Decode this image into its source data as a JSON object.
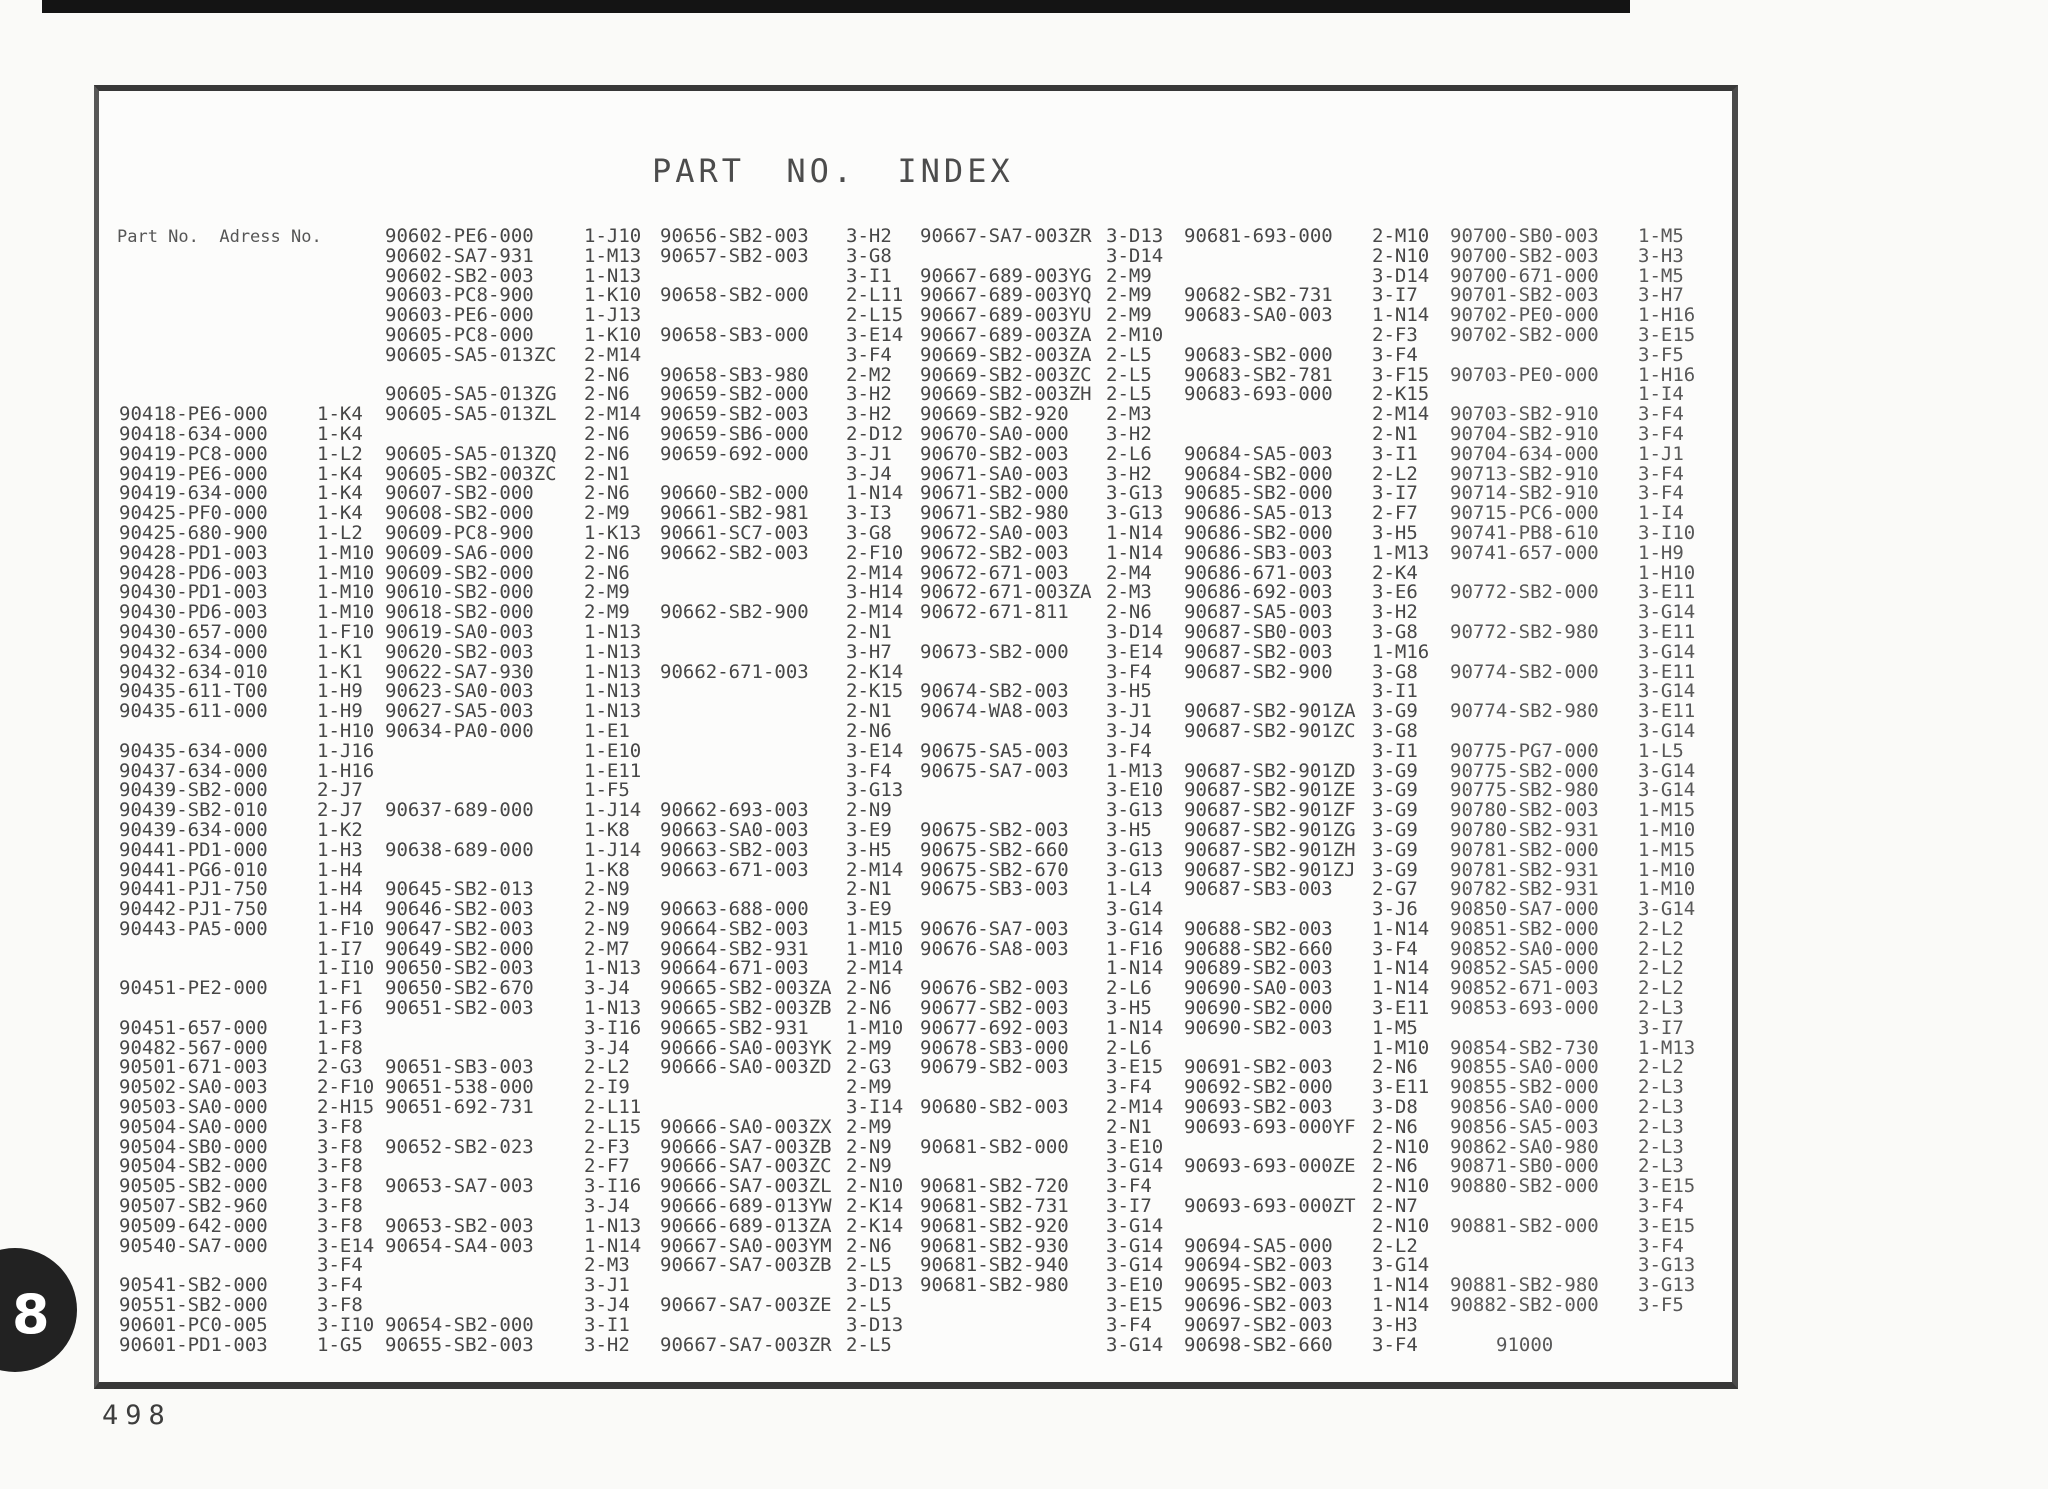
{
  "document": {
    "title": "PART NO. INDEX",
    "column_header": "Part No.  Adress No.",
    "page_number": "498",
    "tab_label": "8"
  },
  "colors": {
    "paper": "#fafaf8",
    "ink": "#474747",
    "frame": "#383838",
    "tab": "#222222",
    "scanbar": "#141414"
  },
  "index_table": {
    "column_roles": [
      "part_no",
      "address_no",
      "part_no",
      "address_no",
      "part_no",
      "address_no",
      "part_no",
      "address_no",
      "part_no",
      "address_no",
      "part_no",
      "address_no"
    ],
    "indent_cells": [
      [
        56,
        10
      ]
    ],
    "rows": [
      [
        "",
        "",
        "90602-PE6-000",
        "1-J10",
        "90656-SB2-003",
        "3-H2",
        "90667-SA7-003ZR",
        "3-D13",
        "90681-693-000",
        "2-M10",
        "90700-SB0-003",
        "1-M5"
      ],
      [
        "",
        "",
        "90602-SA7-931",
        "1-M13",
        "90657-SB2-003",
        "3-G8",
        "",
        "3-D14",
        "",
        "2-N10",
        "90700-SB2-003",
        "3-H3"
      ],
      [
        "",
        "",
        "90602-SB2-003",
        "1-N13",
        "",
        "3-I1",
        "90667-689-003YG",
        "2-M9",
        "",
        "3-D14",
        "90700-671-000",
        "1-M5"
      ],
      [
        "",
        "",
        "90603-PC8-900",
        "1-K10",
        "90658-SB2-000",
        "2-L11",
        "90667-689-003YQ",
        "2-M9",
        "90682-SB2-731",
        "3-I7",
        "90701-SB2-003",
        "3-H7"
      ],
      [
        "",
        "",
        "90603-PE6-000",
        "1-J13",
        "",
        "2-L15",
        "90667-689-003YU",
        "2-M9",
        "90683-SA0-003",
        "1-N14",
        "90702-PE0-000",
        "1-H16"
      ],
      [
        "",
        "",
        "90605-PC8-000",
        "1-K10",
        "90658-SB3-000",
        "3-E14",
        "90667-689-003ZA",
        "2-M10",
        "",
        "2-F3",
        "90702-SB2-000",
        "3-E15"
      ],
      [
        "",
        "",
        "90605-SA5-013ZC",
        "2-M14",
        "",
        "3-F4",
        "90669-SB2-003ZA",
        "2-L5",
        "90683-SB2-000",
        "3-F4",
        "",
        "3-F5"
      ],
      [
        "",
        "",
        "",
        "2-N6",
        "90658-SB3-980",
        "2-M2",
        "90669-SB2-003ZC",
        "2-L5",
        "90683-SB2-781",
        "3-F15",
        "90703-PE0-000",
        "1-H16"
      ],
      [
        "",
        "",
        "90605-SA5-013ZG",
        "2-N6",
        "90659-SB2-000",
        "3-H2",
        "90669-SB2-003ZH",
        "2-L5",
        "90683-693-000",
        "2-K15",
        "",
        "1-I4"
      ],
      [
        "90418-PE6-000",
        "1-K4",
        "90605-SA5-013ZL",
        "2-M14",
        "90659-SB2-003",
        "3-H2",
        "90669-SB2-920",
        "2-M3",
        "",
        "2-M14",
        "90703-SB2-910",
        "3-F4"
      ],
      [
        "90418-634-000",
        "1-K4",
        "",
        "2-N6",
        "90659-SB6-000",
        "2-D12",
        "90670-SA0-000",
        "3-H2",
        "",
        "2-N1",
        "90704-SB2-910",
        "3-F4"
      ],
      [
        "90419-PC8-000",
        "1-L2",
        "90605-SA5-013ZQ",
        "2-N6",
        "90659-692-000",
        "3-J1",
        "90670-SB2-003",
        "2-L6",
        "90684-SA5-003",
        "3-I1",
        "90704-634-000",
        "1-J1"
      ],
      [
        "90419-PE6-000",
        "1-K4",
        "90605-SB2-003ZC",
        "2-N1",
        "",
        "3-J4",
        "90671-SA0-003",
        "3-H2",
        "90684-SB2-000",
        "2-L2",
        "90713-SB2-910",
        "3-F4"
      ],
      [
        "90419-634-000",
        "1-K4",
        "90607-SB2-000",
        "2-N6",
        "90660-SB2-000",
        "1-N14",
        "90671-SB2-000",
        "3-G13",
        "90685-SB2-000",
        "3-I7",
        "90714-SB2-910",
        "3-F4"
      ],
      [
        "90425-PF0-000",
        "1-K4",
        "90608-SB2-000",
        "2-M9",
        "90661-SB2-981",
        "3-I3",
        "90671-SB2-980",
        "3-G13",
        "90686-SA5-013",
        "2-F7",
        "90715-PC6-000",
        "1-I4"
      ],
      [
        "90425-680-900",
        "1-L2",
        "90609-PC8-900",
        "1-K13",
        "90661-SC7-003",
        "3-G8",
        "90672-SA0-003",
        "1-N14",
        "90686-SB2-000",
        "3-H5",
        "90741-PB8-610",
        "3-I10"
      ],
      [
        "90428-PD1-003",
        "1-M10",
        "90609-SA6-000",
        "2-N6",
        "90662-SB2-003",
        "2-F10",
        "90672-SB2-003",
        "1-N14",
        "90686-SB3-003",
        "1-M13",
        "90741-657-000",
        "1-H9"
      ],
      [
        "90428-PD6-003",
        "1-M10",
        "90609-SB2-000",
        "2-N6",
        "",
        "2-M14",
        "90672-671-003",
        "2-M4",
        "90686-671-003",
        "2-K4",
        "",
        "1-H10"
      ],
      [
        "90430-PD1-003",
        "1-M10",
        "90610-SB2-000",
        "2-M9",
        "",
        "3-H14",
        "90672-671-003ZA",
        "2-M3",
        "90686-692-003",
        "3-E6",
        "90772-SB2-000",
        "3-E11"
      ],
      [
        "90430-PD6-003",
        "1-M10",
        "90618-SB2-000",
        "2-M9",
        "90662-SB2-900",
        "2-M14",
        "90672-671-811",
        "2-N6",
        "90687-SA5-003",
        "3-H2",
        "",
        "3-G14"
      ],
      [
        "90430-657-000",
        "1-F10",
        "90619-SA0-003",
        "1-N13",
        "",
        "2-N1",
        "",
        "3-D14",
        "90687-SB0-003",
        "3-G8",
        "90772-SB2-980",
        "3-E11"
      ],
      [
        "90432-634-000",
        "1-K1",
        "90620-SB2-003",
        "1-N13",
        "",
        "3-H7",
        "90673-SB2-000",
        "3-E14",
        "90687-SB2-003",
        "1-M16",
        "",
        "3-G14"
      ],
      [
        "90432-634-010",
        "1-K1",
        "90622-SA7-930",
        "1-N13",
        "90662-671-003",
        "2-K14",
        "",
        "3-F4",
        "90687-SB2-900",
        "3-G8",
        "90774-SB2-000",
        "3-E11"
      ],
      [
        "90435-611-T00",
        "1-H9",
        "90623-SA0-003",
        "1-N13",
        "",
        "2-K15",
        "90674-SB2-003",
        "3-H5",
        "",
        "3-I1",
        "",
        "3-G14"
      ],
      [
        "90435-611-000",
        "1-H9",
        "90627-SA5-003",
        "1-N13",
        "",
        "2-N1",
        "90674-WA8-003",
        "3-J1",
        "90687-SB2-901ZA",
        "3-G9",
        "90774-SB2-980",
        "3-E11"
      ],
      [
        "",
        "1-H10",
        "90634-PA0-000",
        "1-E1",
        "",
        "2-N6",
        "",
        "3-J4",
        "90687-SB2-901ZC",
        "3-G8",
        "",
        "3-G14"
      ],
      [
        "90435-634-000",
        "1-J16",
        "",
        "1-E10",
        "",
        "3-E14",
        "90675-SA5-003",
        "3-F4",
        "",
        "3-I1",
        "90775-PG7-000",
        "1-L5"
      ],
      [
        "90437-634-000",
        "1-H16",
        "",
        "1-E11",
        "",
        "3-F4",
        "90675-SA7-003",
        "1-M13",
        "90687-SB2-901ZD",
        "3-G9",
        "90775-SB2-000",
        "3-G14"
      ],
      [
        "90439-SB2-000",
        "2-J7",
        "",
        "1-F5",
        "",
        "3-G13",
        "",
        "3-E10",
        "90687-SB2-901ZE",
        "3-G9",
        "90775-SB2-980",
        "3-G14"
      ],
      [
        "90439-SB2-010",
        "2-J7",
        "90637-689-000",
        "1-J14",
        "90662-693-003",
        "2-N9",
        "",
        "3-G13",
        "90687-SB2-901ZF",
        "3-G9",
        "90780-SB2-003",
        "1-M15"
      ],
      [
        "90439-634-000",
        "1-K2",
        "",
        "1-K8",
        "90663-SA0-003",
        "3-E9",
        "90675-SB2-003",
        "3-H5",
        "90687-SB2-901ZG",
        "3-G9",
        "90780-SB2-931",
        "1-M10"
      ],
      [
        "90441-PD1-000",
        "1-H3",
        "90638-689-000",
        "1-J14",
        "90663-SB2-003",
        "3-H5",
        "90675-SB2-660",
        "3-G13",
        "90687-SB2-901ZH",
        "3-G9",
        "90781-SB2-000",
        "1-M15"
      ],
      [
        "90441-PG6-010",
        "1-H4",
        "",
        "1-K8",
        "90663-671-003",
        "2-M14",
        "90675-SB2-670",
        "3-G13",
        "90687-SB2-901ZJ",
        "3-G9",
        "90781-SB2-931",
        "1-M10"
      ],
      [
        "90441-PJ1-750",
        "1-H4",
        "90645-SB2-013",
        "2-N9",
        "",
        "2-N1",
        "90675-SB3-003",
        "1-L4",
        "90687-SB3-003",
        "2-G7",
        "90782-SB2-931",
        "1-M10"
      ],
      [
        "90442-PJ1-750",
        "1-H4",
        "90646-SB2-003",
        "2-N9",
        "90663-688-000",
        "3-E9",
        "",
        "3-G14",
        "",
        "3-J6",
        "90850-SA7-000",
        "3-G14"
      ],
      [
        "90443-PA5-000",
        "1-F10",
        "90647-SB2-003",
        "2-N9",
        "90664-SB2-003",
        "1-M15",
        "90676-SA7-003",
        "3-G14",
        "90688-SB2-003",
        "1-N14",
        "90851-SB2-000",
        "2-L2"
      ],
      [
        "",
        "1-I7",
        "90649-SB2-000",
        "2-M7",
        "90664-SB2-931",
        "1-M10",
        "90676-SA8-003",
        "1-F16",
        "90688-SB2-660",
        "3-F4",
        "90852-SA0-000",
        "2-L2"
      ],
      [
        "",
        "1-I10",
        "90650-SB2-003",
        "1-N13",
        "90664-671-003",
        "2-M14",
        "",
        "1-N14",
        "90689-SB2-003",
        "1-N14",
        "90852-SA5-000",
        "2-L2"
      ],
      [
        "90451-PE2-000",
        "1-F1",
        "90650-SB2-670",
        "3-J4",
        "90665-SB2-003ZA",
        "2-N6",
        "90676-SB2-003",
        "2-L6",
        "90690-SA0-003",
        "1-N14",
        "90852-671-003",
        "2-L2"
      ],
      [
        "",
        "1-F6",
        "90651-SB2-003",
        "1-N13",
        "90665-SB2-003ZB",
        "2-N6",
        "90677-SB2-003",
        "3-H5",
        "90690-SB2-000",
        "3-E11",
        "90853-693-000",
        "2-L3"
      ],
      [
        "90451-657-000",
        "1-F3",
        "",
        "3-I16",
        "90665-SB2-931",
        "1-M10",
        "90677-692-003",
        "1-N14",
        "90690-SB2-003",
        "1-M5",
        "",
        "3-I7"
      ],
      [
        "90482-567-000",
        "1-F8",
        "",
        "3-J4",
        "90666-SA0-003YK",
        "2-M9",
        "90678-SB3-000",
        "2-L6",
        "",
        "1-M10",
        "90854-SB2-730",
        "1-M13"
      ],
      [
        "90501-671-003",
        "2-G3",
        "90651-SB3-003",
        "2-L2",
        "90666-SA0-003ZD",
        "2-G3",
        "90679-SB2-003",
        "3-E15",
        "90691-SB2-003",
        "2-N6",
        "90855-SA0-000",
        "2-L2"
      ],
      [
        "90502-SA0-003",
        "2-F10",
        "90651-538-000",
        "2-I9",
        "",
        "2-M9",
        "",
        "3-F4",
        "90692-SB2-000",
        "3-E11",
        "90855-SB2-000",
        "2-L3"
      ],
      [
        "90503-SA0-000",
        "2-H15",
        "90651-692-731",
        "2-L11",
        "",
        "3-I14",
        "90680-SB2-003",
        "2-M14",
        "90693-SB2-003",
        "3-D8",
        "90856-SA0-000",
        "2-L3"
      ],
      [
        "90504-SA0-000",
        "3-F8",
        "",
        "2-L15",
        "90666-SA0-003ZX",
        "2-M9",
        "",
        "2-N1",
        "90693-693-000YF",
        "2-N6",
        "90856-SA5-003",
        "2-L3"
      ],
      [
        "90504-SB0-000",
        "3-F8",
        "90652-SB2-023",
        "2-F3",
        "90666-SA7-003ZB",
        "2-N9",
        "90681-SB2-000",
        "3-E10",
        "",
        "2-N10",
        "90862-SA0-980",
        "2-L3"
      ],
      [
        "90504-SB2-000",
        "3-F8",
        "",
        "2-F7",
        "90666-SA7-003ZC",
        "2-N9",
        "",
        "3-G14",
        "90693-693-000ZE",
        "2-N6",
        "90871-SB0-000",
        "2-L3"
      ],
      [
        "90505-SB2-000",
        "3-F8",
        "90653-SA7-003",
        "3-I16",
        "90666-SA7-003ZL",
        "2-N10",
        "90681-SB2-720",
        "3-F4",
        "",
        "2-N10",
        "90880-SB2-000",
        "3-E15"
      ],
      [
        "90507-SB2-960",
        "3-F8",
        "",
        "3-J4",
        "90666-689-013YW",
        "2-K14",
        "90681-SB2-731",
        "3-I7",
        "90693-693-000ZT",
        "2-N7",
        "",
        "3-F4"
      ],
      [
        "90509-642-000",
        "3-F8",
        "90653-SB2-003",
        "1-N13",
        "90666-689-013ZA",
        "2-K14",
        "90681-SB2-920",
        "3-G14",
        "",
        "2-N10",
        "90881-SB2-000",
        "3-E15"
      ],
      [
        "90540-SA7-000",
        "3-E14",
        "90654-SA4-003",
        "1-N14",
        "90667-SA0-003YM",
        "2-N6",
        "90681-SB2-930",
        "3-G14",
        "90694-SA5-000",
        "2-L2",
        "",
        "3-F4"
      ],
      [
        "",
        "3-F4",
        "",
        "2-M3",
        "90667-SA7-003ZB",
        "2-L5",
        "90681-SB2-940",
        "3-G14",
        "90694-SB2-003",
        "3-G14",
        "",
        "3-G13"
      ],
      [
        "90541-SB2-000",
        "3-F4",
        "",
        "3-J1",
        "",
        "3-D13",
        "90681-SB2-980",
        "3-E10",
        "90695-SB2-003",
        "1-N14",
        "90881-SB2-980",
        "3-G13"
      ],
      [
        "90551-SB2-000",
        "3-F8",
        "",
        "3-J4",
        "90667-SA7-003ZE",
        "2-L5",
        "",
        "3-E15",
        "90696-SB2-003",
        "1-N14",
        "90882-SB2-000",
        "3-F5"
      ],
      [
        "90601-PC0-005",
        "3-I10",
        "90654-SB2-000",
        "3-I1",
        "",
        "3-D13",
        "",
        "3-F4",
        "90697-SB2-003",
        "3-H3",
        "",
        ""
      ],
      [
        "90601-PD1-003",
        "1-G5",
        "90655-SB2-003",
        "3-H2",
        "90667-SA7-003ZR",
        "2-L5",
        "",
        "3-G14",
        "90698-SB2-660",
        "3-F4",
        "91000",
        ""
      ]
    ]
  }
}
